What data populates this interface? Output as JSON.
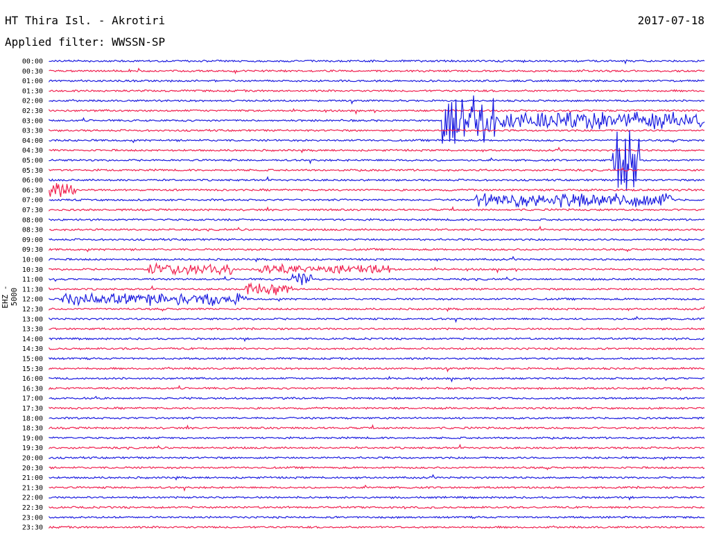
{
  "header": {
    "station": "HT Thira Isl. - Akrotiri",
    "date": "2017-07-18",
    "filter": "Applied filter: WWSSN-SP"
  },
  "axis": {
    "ylabel": "EHZ - 5000"
  },
  "colors": {
    "even": "#1a1adf",
    "odd": "#f0204f"
  },
  "chart_data": {
    "type": "line",
    "rows": [
      "00:00",
      "00:30",
      "01:00",
      "01:30",
      "02:00",
      "02:30",
      "03:00",
      "03:30",
      "04:00",
      "04:30",
      "05:00",
      "05:30",
      "06:00",
      "06:30",
      "07:00",
      "07:30",
      "08:00",
      "08:30",
      "09:00",
      "09:30",
      "10:00",
      "10:30",
      "11:00",
      "11:30",
      "12:00",
      "12:30",
      "13:00",
      "13:30",
      "14:00",
      "14:30",
      "15:00",
      "15:30",
      "16:00",
      "16:30",
      "17:00",
      "17:30",
      "18:00",
      "18:30",
      "19:00",
      "19:30",
      "20:00",
      "20:30",
      "21:00",
      "21:30",
      "22:00",
      "22:30",
      "23:00",
      "23:30"
    ],
    "trace_minutes": 30,
    "grid": false,
    "events": [
      {
        "row": 6,
        "start": 0.6,
        "end": 0.68,
        "amp": 40,
        "color": "odd"
      },
      {
        "row": 6,
        "start": 0.68,
        "end": 1.0,
        "amp": 14,
        "color": "odd"
      },
      {
        "row": 10,
        "start": 0.86,
        "end": 0.9,
        "amp": 55,
        "color": "odd"
      },
      {
        "row": 13,
        "start": 0.0,
        "end": 0.04,
        "amp": 16,
        "color": "even"
      },
      {
        "row": 14,
        "start": 0.65,
        "end": 0.95,
        "amp": 12,
        "color": "odd"
      },
      {
        "row": 21,
        "start": 0.15,
        "end": 0.28,
        "amp": 9,
        "color": "odd"
      },
      {
        "row": 21,
        "start": 0.32,
        "end": 0.52,
        "amp": 8,
        "color": "odd"
      },
      {
        "row": 22,
        "start": 0.37,
        "end": 0.4,
        "amp": 10,
        "color": "even"
      },
      {
        "row": 23,
        "start": 0.3,
        "end": 0.37,
        "amp": 10,
        "color": "odd"
      },
      {
        "row": 24,
        "start": 0.02,
        "end": 0.3,
        "amp": 10,
        "color": "even"
      }
    ]
  }
}
